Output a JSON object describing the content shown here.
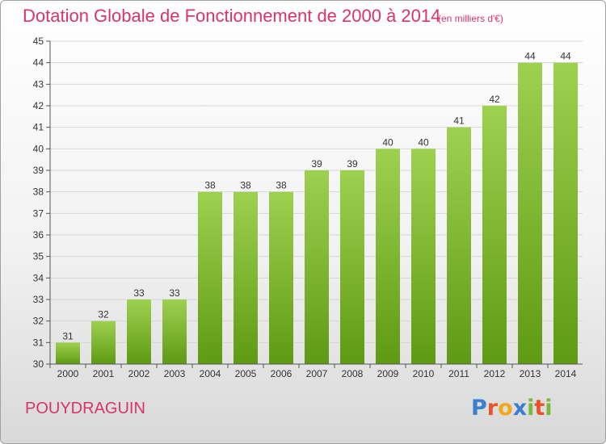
{
  "title": "Dotation Globale de Fonctionnement de 2000 à 2014",
  "subtitle": "(en milliers d'€)",
  "commune": "POUYDRAGUIN",
  "brand": "Proxiti",
  "colors": {
    "title": "#d8336e",
    "bar_top": "#9dd150",
    "bar_bottom": "#5f9a14",
    "grid": "#d6d6d6",
    "axis": "#555555",
    "brand_letters": [
      "#3a7fd0",
      "#e8542a",
      "#f3a71a",
      "#3a7fd0",
      "#7ab83a",
      "#e8542a",
      "#7ab83a"
    ]
  },
  "chart_data": {
    "type": "bar",
    "title": "Dotation Globale de Fonctionnement de 2000 à 2014",
    "subtitle": "(en milliers d'€)",
    "xlabel": "",
    "ylabel": "",
    "categories": [
      "2000",
      "2001",
      "2002",
      "2003",
      "2004",
      "2005",
      "2006",
      "2007",
      "2008",
      "2009",
      "2010",
      "2011",
      "2012",
      "2013",
      "2014"
    ],
    "values": [
      31,
      32,
      33,
      33,
      38,
      38,
      38,
      39,
      39,
      40,
      40,
      41,
      42,
      44,
      44
    ],
    "ylim": [
      30,
      45
    ],
    "yticks": [
      30,
      31,
      32,
      33,
      34,
      35,
      36,
      37,
      38,
      39,
      40,
      41,
      42,
      43,
      44,
      45
    ],
    "grid": true,
    "legend": "none"
  }
}
